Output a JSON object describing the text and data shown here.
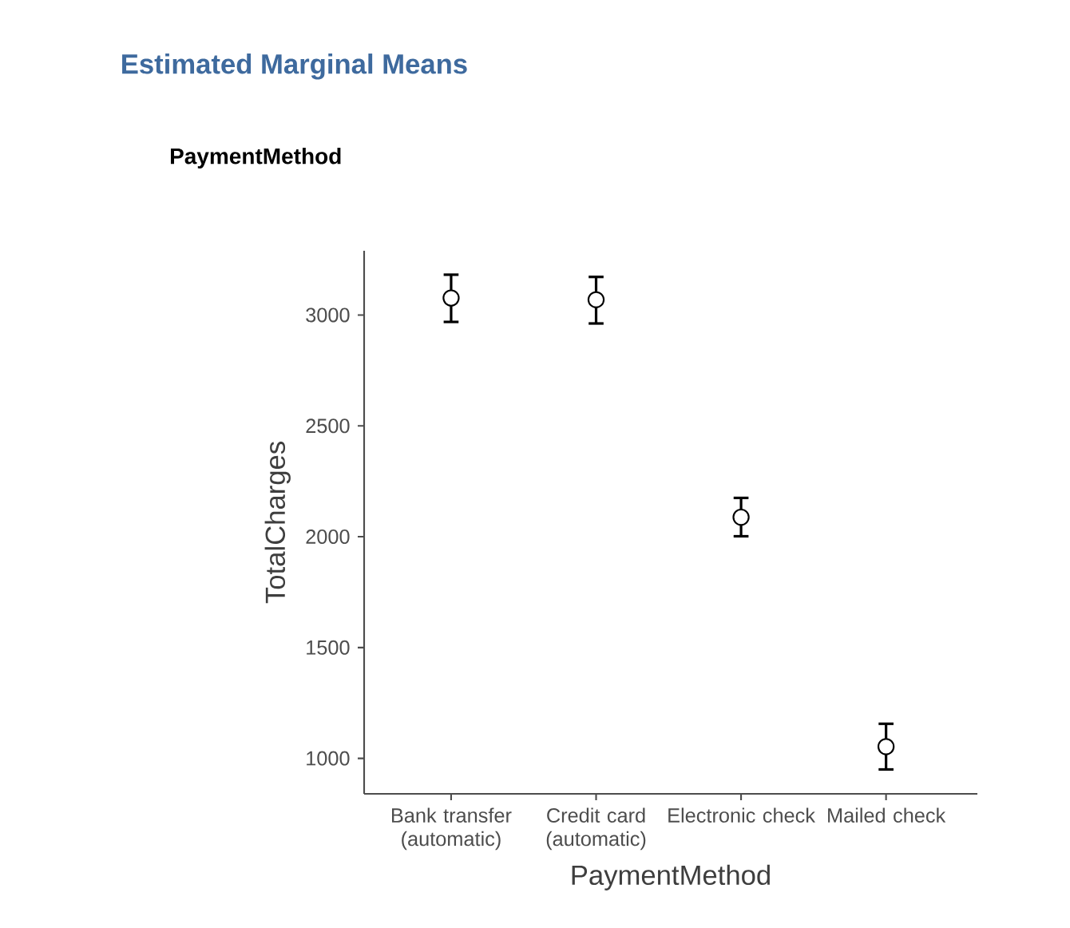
{
  "chart_data": {
    "type": "scatter",
    "title": "Estimated Marginal Means",
    "subtitle": "PaymentMethod",
    "xlabel": "PaymentMethod",
    "ylabel": "TotalCharges",
    "categories": [
      "Bank transfer (automatic)",
      "Credit card (automatic)",
      "Electronic check",
      "Mailed check"
    ],
    "values": [
      3077,
      3069,
      2088,
      1053
    ],
    "errors": [
      [
        2969,
        3182
      ],
      [
        2962,
        3172
      ],
      [
        2002,
        2175
      ],
      [
        950,
        1156
      ]
    ],
    "color": "#000000",
    "marker": "circle",
    "grid": false,
    "ylim": [
      840,
      3290
    ],
    "yticks": [
      1000,
      1500,
      2000,
      2500,
      3000
    ]
  }
}
